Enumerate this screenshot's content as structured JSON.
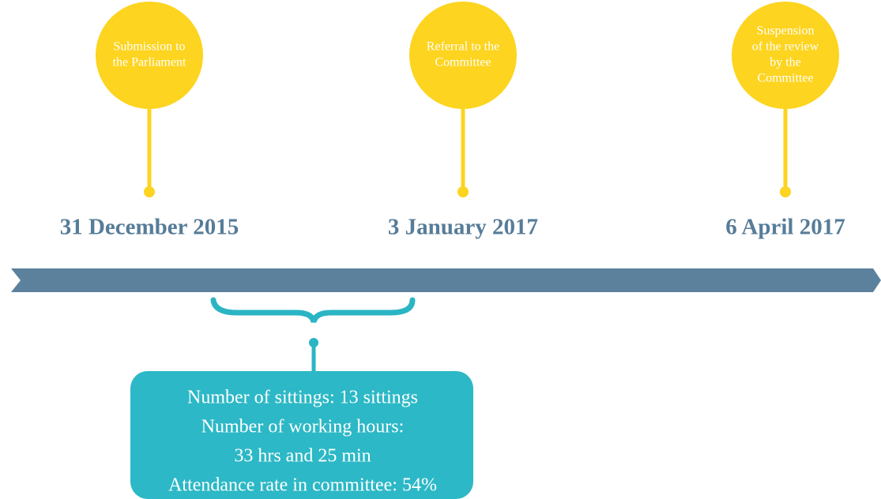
{
  "events": [
    {
      "label": [
        "Submission to",
        "the Parliament"
      ],
      "date": "31 December 2015"
    },
    {
      "label": [
        "Referral to the",
        "Committee"
      ],
      "date": "3 January 2017"
    },
    {
      "label": [
        "Suspension",
        "of the review",
        "by the",
        "Committee"
      ],
      "date": "6 April 2017"
    }
  ],
  "stats": [
    "Number of sittings: 13 sittings",
    "Number of working hours:",
    "33 hrs and 25 min",
    "Attendance rate in committee: 54%"
  ]
}
